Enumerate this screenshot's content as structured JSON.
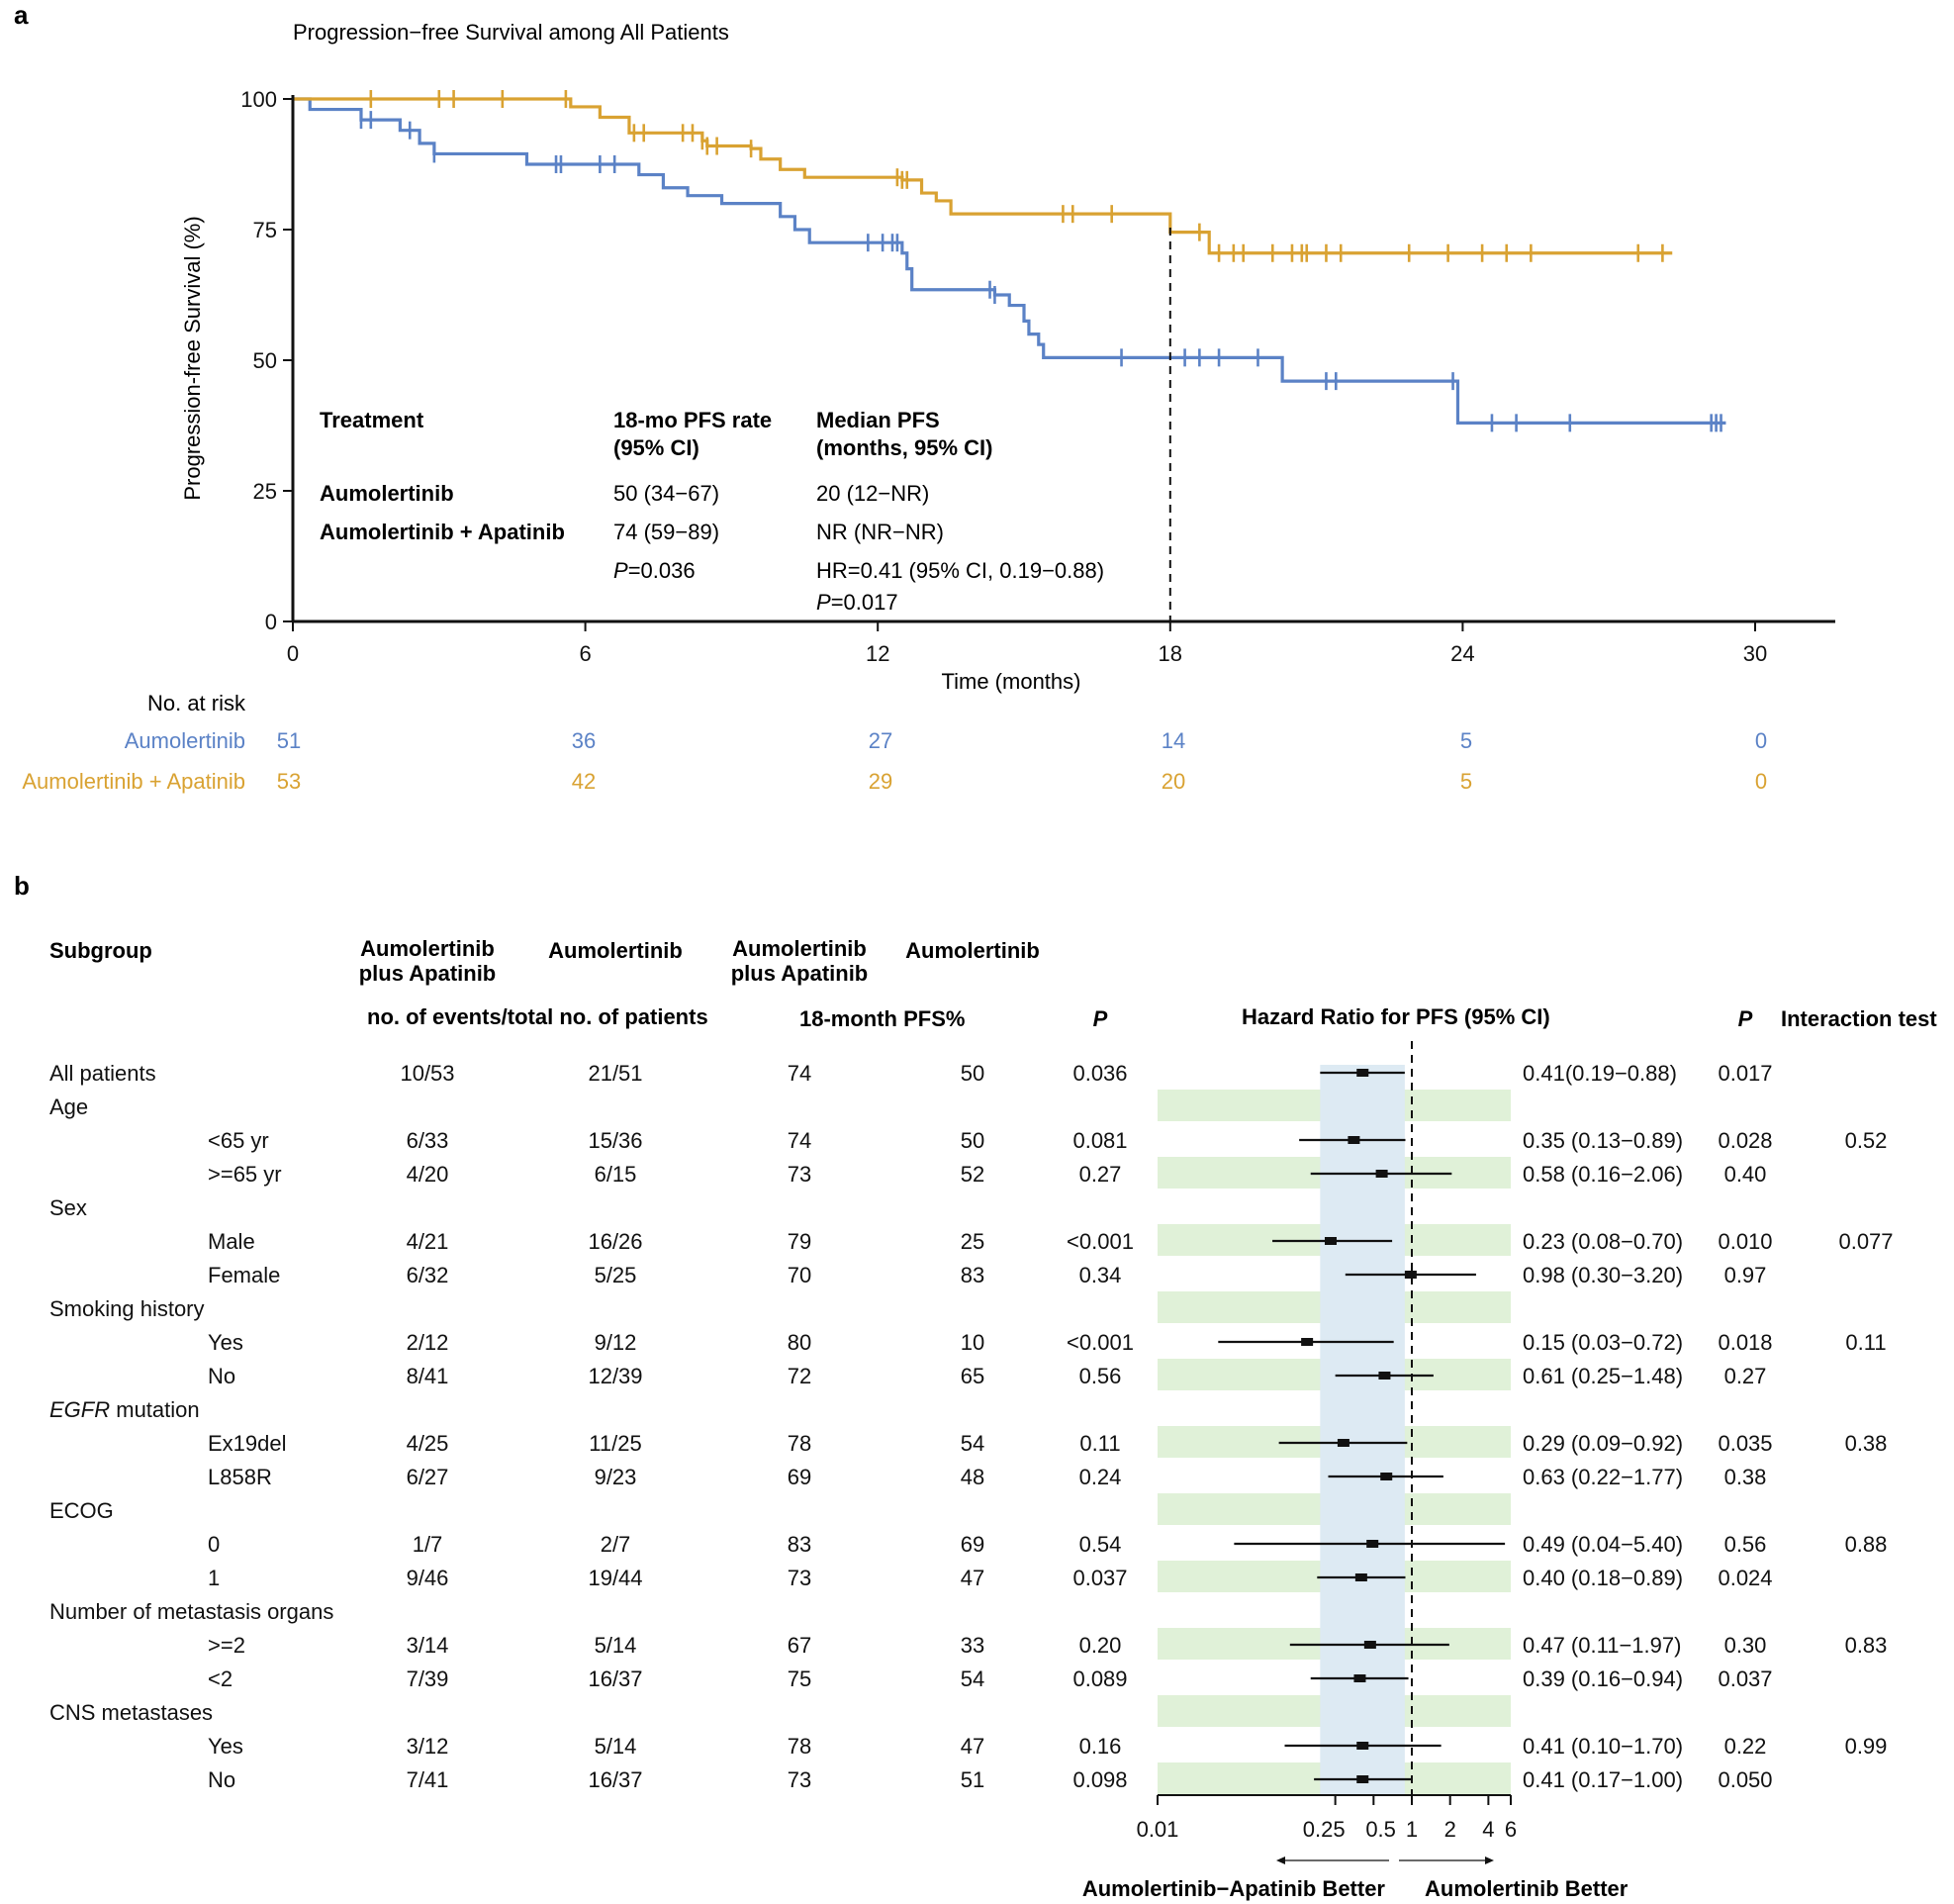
{
  "colors": {
    "aumolertinib": "#5b82c6",
    "combo": "#d9a232",
    "stripe": "#e0f1d8",
    "hr_band": "#ddeaf3",
    "ink": "#111111"
  },
  "panel_a": {
    "letter": "a",
    "title": "Progression−free Survival among All Patients",
    "ylabel": "Progression-free Survival (%)",
    "xlabel": "Time (months)",
    "y_ticks": [
      "0",
      "25",
      "50",
      "75",
      "100"
    ],
    "x_ticks": [
      "0",
      "6",
      "12",
      "18",
      "24",
      "30"
    ],
    "inset": {
      "header_treatment": "Treatment",
      "header_rate_1": "18-mo PFS rate",
      "header_rate_2": "(95% CI)",
      "header_median_1": "Median PFS",
      "header_median_2": "(months, 95% CI)",
      "row1_name": "Aumolertinib",
      "row1_rate": "50 (34−67)",
      "row1_median": "20 (12−NR)",
      "row2_name": "Aumolertinib + Apatinib",
      "row2_rate": "74 (59−89)",
      "row2_median": "NR (NR−NR)",
      "p_label": "P",
      "p_value": "=0.036",
      "hr_text": "HR=0.41 (95% CI, 0.19−0.88)",
      "p2_label": "P",
      "p2_value": "=0.017"
    },
    "risk_table": {
      "header": "No. at risk",
      "rows": [
        {
          "name": "Aumolertinib",
          "values": [
            "51",
            "36",
            "27",
            "14",
            "5",
            "0"
          ]
        },
        {
          "name": "Aumolertinib + Apatinib",
          "values": [
            "53",
            "42",
            "29",
            "20",
            "5",
            "0"
          ]
        }
      ]
    }
  },
  "chart_data": [
    {
      "type": "line",
      "subtype": "kaplan-meier",
      "title": "Progression−free Survival among All Patients",
      "xlabel": "Time (months)",
      "ylabel": "Progression-free Survival (%)",
      "xlim": [
        0,
        30
      ],
      "ylim": [
        0,
        100
      ],
      "reference_line_x": 18,
      "series": [
        {
          "name": "Aumolertinib",
          "color": "#5b82c6",
          "steps": [
            [
              0,
              100
            ],
            [
              0.35,
              98
            ],
            [
              1.4,
              96
            ],
            [
              2.2,
              94
            ],
            [
              2.6,
              91.5
            ],
            [
              2.9,
              89.5
            ],
            [
              4.8,
              87.5
            ],
            [
              5.9,
              87.5
            ],
            [
              7.1,
              85.5
            ],
            [
              7.6,
              83
            ],
            [
              8.1,
              81.5
            ],
            [
              8.8,
              80
            ],
            [
              10.0,
              77.5
            ],
            [
              10.3,
              75
            ],
            [
              10.6,
              72.5
            ],
            [
              12.5,
              70.5
            ],
            [
              12.6,
              67.5
            ],
            [
              12.7,
              63.5
            ],
            [
              14.4,
              62.5
            ],
            [
              14.7,
              60.5
            ],
            [
              15.0,
              57.5
            ],
            [
              15.1,
              55
            ],
            [
              15.3,
              53
            ],
            [
              15.4,
              50.5
            ],
            [
              16.2,
              50.5
            ],
            [
              20.3,
              46
            ],
            [
              23.9,
              38
            ]
          ],
          "end": 29.4,
          "censors": [
            1.4,
            1.6,
            2.4,
            2.9,
            5.4,
            5.5,
            6.3,
            6.6,
            11.8,
            12.1,
            12.3,
            12.4,
            14.3,
            14.4,
            17.0,
            18.3,
            18.6,
            19.0,
            19.8,
            21.2,
            21.4,
            23.8,
            24.6,
            25.1,
            26.2,
            29.1,
            29.2,
            29.3
          ]
        },
        {
          "name": "Aumolertinib + Apatinib",
          "color": "#d9a232",
          "steps": [
            [
              0,
              100
            ],
            [
              5.7,
              98.5
            ],
            [
              6.3,
              96.5
            ],
            [
              6.9,
              93.5
            ],
            [
              8.4,
              92
            ],
            [
              8.5,
              91
            ],
            [
              9.4,
              90.5
            ],
            [
              9.6,
              88.5
            ],
            [
              10.0,
              86.5
            ],
            [
              10.5,
              85
            ],
            [
              12.5,
              84.5
            ],
            [
              12.9,
              82
            ],
            [
              13.2,
              80.5
            ],
            [
              13.5,
              78
            ],
            [
              16.2,
              78
            ],
            [
              18.0,
              74.5
            ],
            [
              18.8,
              70.5
            ]
          ],
          "end": 28.3,
          "censors": [
            1.6,
            3.0,
            3.3,
            4.3,
            5.6,
            7.0,
            7.2,
            8.0,
            8.2,
            8.4,
            8.5,
            8.7,
            9.4,
            12.4,
            12.5,
            12.6,
            15.8,
            16.0,
            16.8,
            18.6,
            19.0,
            19.3,
            19.5,
            20.1,
            20.5,
            20.7,
            20.8,
            21.2,
            21.5,
            22.9,
            23.7,
            24.4,
            24.9,
            25.4,
            27.6,
            28.1
          ]
        }
      ]
    },
    {
      "type": "forest",
      "title": "Hazard Ratio for PFS (95% CI)",
      "x_scale": "log",
      "xlim": [
        0.01,
        6
      ],
      "x_ticks": [
        "0.01",
        "0.25",
        "0.5",
        "1",
        "2",
        "4",
        "6"
      ],
      "x_tick_values": [
        0.01,
        0.25,
        0.5,
        1,
        2,
        4,
        6
      ],
      "reference_line": 1,
      "overall_band": [
        0.19,
        0.88
      ],
      "headers": {
        "subgroup": "Subgroup",
        "col1_1": "Aumolertinib",
        "col1_2": "plus Apatinib",
        "col2": "Aumolertinib",
        "col3_1": "Aumolertinib",
        "col3_2": "plus Apatinib",
        "col4": "Aumolertinib",
        "events_label": "no. of events/total no. of patients",
        "pfs_label": "18-month PFS%",
        "p": "P",
        "hr": "Hazard Ratio for PFS  (95% CI)",
        "p2": "P",
        "interaction": "Interaction test"
      },
      "direction_left": "Aumolertinib−Apatinib Better",
      "direction_right": "Aumolertinib Better",
      "rows": [
        {
          "label": "All patients",
          "indent": false,
          "combo": "10/53",
          "mono": "21/51",
          "pfs_combo": "74",
          "pfs_mono": "50",
          "p": "0.036",
          "hr": 0.41,
          "lo": 0.19,
          "hi": 0.88,
          "hr_text": "0.41(0.19−0.88)",
          "p2": "0.017",
          "interaction": "",
          "stripe": false
        },
        {
          "label": "Age",
          "indent": false,
          "stripe": true
        },
        {
          "label": "<65 yr",
          "indent": true,
          "combo": "6/33",
          "mono": "15/36",
          "pfs_combo": "74",
          "pfs_mono": "50",
          "p": "0.081",
          "hr": 0.35,
          "lo": 0.13,
          "hi": 0.89,
          "hr_text": "0.35 (0.13−0.89)",
          "p2": "0.028",
          "interaction": "0.52",
          "stripe": false
        },
        {
          "label": ">=65 yr",
          "indent": true,
          "combo": "4/20",
          "mono": "6/15",
          "pfs_combo": "73",
          "pfs_mono": "52",
          "p": "0.27",
          "hr": 0.58,
          "lo": 0.16,
          "hi": 2.06,
          "hr_text": "0.58 (0.16−2.06)",
          "p2": "0.40",
          "interaction": "",
          "stripe": true
        },
        {
          "label": "Sex",
          "indent": false,
          "stripe": false
        },
        {
          "label": "Male",
          "indent": true,
          "combo": "4/21",
          "mono": "16/26",
          "pfs_combo": "79",
          "pfs_mono": "25",
          "p": "<0.001",
          "hr": 0.23,
          "lo": 0.08,
          "hi": 0.7,
          "hr_text": "0.23 (0.08−0.70)",
          "p2": "0.010",
          "interaction": "0.077",
          "stripe": true
        },
        {
          "label": "Female",
          "indent": true,
          "combo": "6/32",
          "mono": "5/25",
          "pfs_combo": "70",
          "pfs_mono": "83",
          "p": "0.34",
          "hr": 0.98,
          "lo": 0.3,
          "hi": 3.2,
          "hr_text": "0.98 (0.30−3.20)",
          "p2": "0.97",
          "interaction": "",
          "stripe": false
        },
        {
          "label": "Smoking history",
          "indent": false,
          "stripe": true
        },
        {
          "label": "Yes",
          "indent": true,
          "combo": "2/12",
          "mono": "9/12",
          "pfs_combo": "80",
          "pfs_mono": "10",
          "p": "<0.001",
          "hr": 0.15,
          "lo": 0.03,
          "hi": 0.72,
          "hr_text": "0.15 (0.03−0.72)",
          "p2": "0.018",
          "interaction": "0.11",
          "stripe": false
        },
        {
          "label": "No",
          "indent": true,
          "combo": "8/41",
          "mono": "12/39",
          "pfs_combo": "72",
          "pfs_mono": "65",
          "p": "0.56",
          "hr": 0.61,
          "lo": 0.25,
          "hi": 1.48,
          "hr_text": "0.61 (0.25−1.48)",
          "p2": "0.27",
          "interaction": "",
          "stripe": true
        },
        {
          "label_italic": "EGFR",
          "label": " mutation",
          "indent": false,
          "stripe": false
        },
        {
          "label": "Ex19del",
          "indent": true,
          "combo": "4/25",
          "mono": "11/25",
          "pfs_combo": "78",
          "pfs_mono": "54",
          "p": "0.11",
          "hr": 0.29,
          "lo": 0.09,
          "hi": 0.92,
          "hr_text": "0.29 (0.09−0.92)",
          "p2": "0.035",
          "interaction": "0.38",
          "stripe": true
        },
        {
          "label": "L858R",
          "indent": true,
          "combo": "6/27",
          "mono": "9/23",
          "pfs_combo": "69",
          "pfs_mono": "48",
          "p": "0.24",
          "hr": 0.63,
          "lo": 0.22,
          "hi": 1.77,
          "hr_text": "0.63 (0.22−1.77)",
          "p2": "0.38",
          "interaction": "",
          "stripe": false
        },
        {
          "label": "ECOG",
          "indent": false,
          "stripe": true
        },
        {
          "label": "0",
          "indent": true,
          "combo": "1/7",
          "mono": "2/7",
          "pfs_combo": "83",
          "pfs_mono": "69",
          "p": "0.54",
          "hr": 0.49,
          "lo": 0.04,
          "hi": 5.4,
          "hr_text": "0.49 (0.04−5.40)",
          "p2": "0.56",
          "interaction": "0.88",
          "stripe": false
        },
        {
          "label": "1",
          "indent": true,
          "combo": "9/46",
          "mono": "19/44",
          "pfs_combo": "73",
          "pfs_mono": "47",
          "p": "0.037",
          "hr": 0.4,
          "lo": 0.18,
          "hi": 0.89,
          "hr_text": "0.40 (0.18−0.89)",
          "p2": "0.024",
          "interaction": "",
          "stripe": true
        },
        {
          "label": "Number of metastasis organs",
          "indent": false,
          "stripe": false
        },
        {
          "label": ">=2",
          "indent": true,
          "combo": "3/14",
          "mono": "5/14",
          "pfs_combo": "67",
          "pfs_mono": "33",
          "p": "0.20",
          "hr": 0.47,
          "lo": 0.11,
          "hi": 1.97,
          "hr_text": "0.47 (0.11−1.97)",
          "p2": "0.30",
          "interaction": "0.83",
          "stripe": true
        },
        {
          "label": "<2",
          "indent": true,
          "combo": "7/39",
          "mono": "16/37",
          "pfs_combo": "75",
          "pfs_mono": "54",
          "p": "0.089",
          "hr": 0.39,
          "lo": 0.16,
          "hi": 0.94,
          "hr_text": "0.39 (0.16−0.94)",
          "p2": "0.037",
          "interaction": "",
          "stripe": false
        },
        {
          "label": "CNS metastases",
          "indent": false,
          "stripe": true
        },
        {
          "label": "Yes",
          "indent": true,
          "combo": "3/12",
          "mono": "5/14",
          "pfs_combo": "78",
          "pfs_mono": "47",
          "p": "0.16",
          "hr": 0.41,
          "lo": 0.1,
          "hi": 1.7,
          "hr_text": "0.41 (0.10−1.70)",
          "p2": "0.22",
          "interaction": "0.99",
          "stripe": false
        },
        {
          "label": "No",
          "indent": true,
          "combo": "7/41",
          "mono": "16/37",
          "pfs_combo": "73",
          "pfs_mono": "51",
          "p": "0.098",
          "hr": 0.41,
          "lo": 0.17,
          "hi": 1.0,
          "hr_text": "0.41 (0.17−1.00)",
          "p2": "0.050",
          "interaction": "",
          "stripe": true
        }
      ]
    }
  ]
}
